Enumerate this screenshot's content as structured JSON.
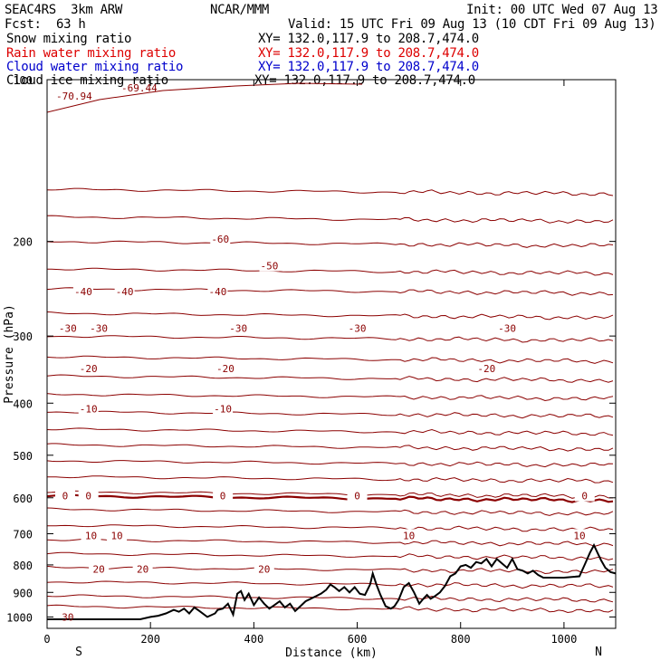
{
  "header": {
    "model": "SEAC4RS  3km ARW",
    "org": "NCAR/MMM",
    "init": "Init: 00 UTC Wed 07 Aug 13",
    "fcst_label": "Fcst:",
    "fcst_value": "63 h",
    "valid": "Valid: 15 UTC Fri 09 Aug 13 (10 CDT Fri 09 Aug 13)"
  },
  "fields": [
    {
      "name": "Snow mixing ratio",
      "xy": "XY= 132.0,117.9 to 208.7,474.0",
      "color": "#000000"
    },
    {
      "name": "Rain water mixing ratio",
      "xy": "XY= 132.0,117.9 to 208.7,474.0",
      "color": "#dd0000"
    },
    {
      "name": "Cloud water mixing ratio",
      "xy": "XY= 132.0,117.9 to 208.7,474.0",
      "color": "#0000cc"
    },
    {
      "name": "Cloud ice mixing ratio",
      "xy": "XY= 132.0,117.9 to 208.7,474.0",
      "color": "#000000"
    }
  ],
  "chart_data": {
    "type": "line",
    "xlabel": "Distance (km)",
    "ylabel": "Pressure (hPa)",
    "xlim": [
      0,
      1100
    ],
    "ylim": [
      1050,
      100
    ],
    "y_scale": "log",
    "x_ticks": [
      0,
      200,
      400,
      600,
      800,
      1000
    ],
    "y_ticks": [
      100,
      200,
      300,
      400,
      500,
      600,
      700,
      800,
      900,
      1000
    ],
    "x_end_labels": {
      "left": "S",
      "right": "N"
    },
    "isotherm_color": "#8b0000",
    "terrain_color": "#000000",
    "extreme_labels": [
      "-70.94",
      "-69.44"
    ],
    "isotherms": [
      {
        "value": -60,
        "label": "-60",
        "label_x": [
          335
        ]
      },
      {
        "value": -50,
        "label": "-50",
        "label_x": [
          430
        ]
      },
      {
        "value": -40,
        "label": "-40",
        "label_x": [
          70,
          150,
          330
        ]
      },
      {
        "value": -30,
        "label": "-30",
        "label_x": [
          40,
          100,
          370,
          600,
          890
        ]
      },
      {
        "value": -20,
        "label": "-20",
        "label_x": [
          80,
          345,
          850
        ]
      },
      {
        "value": -10,
        "label": "-10",
        "label_x": [
          80,
          340
        ]
      },
      {
        "value": 0,
        "label": "0",
        "label_x": [
          35,
          80,
          340,
          600,
          1040
        ]
      },
      {
        "value": 10,
        "label": "10",
        "label_x": [
          85,
          135,
          700,
          1030
        ]
      },
      {
        "value": 20,
        "label": "20",
        "label_x": [
          100,
          185,
          420
        ]
      },
      {
        "value": 30,
        "label": "30",
        "label_x": [
          40
        ]
      }
    ],
    "isotherm_levels_hpa": [
      160,
      180,
      200,
      225,
      245,
      272,
      300,
      328,
      356,
      385,
      415,
      447,
      478,
      512,
      548,
      585,
      630,
      675,
      718,
      762,
      808,
      860,
      913,
      955
    ],
    "terrain": {
      "x": [
        0,
        180,
        200,
        215,
        230,
        245,
        255,
        265,
        275,
        285,
        295,
        310,
        325,
        330,
        340,
        350,
        360,
        368,
        375,
        382,
        390,
        400,
        410,
        420,
        430,
        440,
        450,
        460,
        470,
        480,
        490,
        500,
        510,
        520,
        530,
        540,
        548,
        556,
        565,
        575,
        585,
        595,
        605,
        615,
        625,
        630,
        637,
        645,
        655,
        665,
        672,
        680,
        690,
        700,
        710,
        720,
        728,
        735,
        742,
        750,
        760,
        770,
        780,
        790,
        800,
        810,
        820,
        830,
        840,
        850,
        860,
        870,
        880,
        890,
        900,
        910,
        920,
        930,
        940,
        950,
        960,
        980,
        1000,
        1030,
        1040,
        1050,
        1058,
        1065,
        1072,
        1080,
        1090,
        1100
      ],
      "y": [
        1010,
        1010,
        1000,
        995,
        985,
        970,
        978,
        965,
        985,
        960,
        975,
        1000,
        985,
        970,
        965,
        945,
        990,
        905,
        895,
        930,
        905,
        950,
        920,
        945,
        965,
        950,
        935,
        960,
        945,
        975,
        955,
        935,
        925,
        915,
        905,
        890,
        870,
        880,
        895,
        880,
        900,
        880,
        905,
        910,
        870,
        830,
        870,
        910,
        955,
        965,
        955,
        930,
        880,
        865,
        900,
        945,
        925,
        910,
        925,
        915,
        900,
        875,
        840,
        830,
        805,
        800,
        810,
        790,
        795,
        780,
        805,
        780,
        795,
        810,
        780,
        815,
        820,
        830,
        820,
        835,
        845,
        845,
        845,
        840,
        800,
        760,
        735,
        760,
        785,
        810,
        825,
        830
      ]
    }
  }
}
